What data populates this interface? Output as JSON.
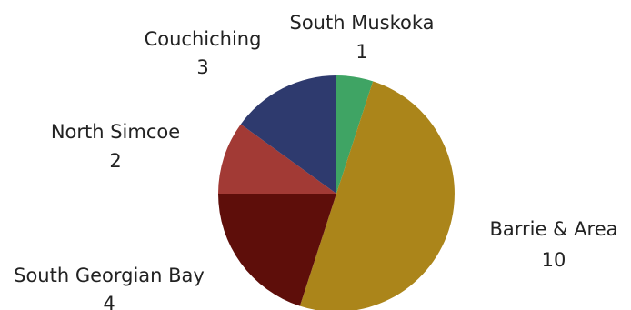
{
  "chart_data": {
    "type": "pie",
    "categories": [
      "South Muskoka",
      "Barrie & Area",
      "South Georgian Bay",
      "North Simcoe",
      "Couchiching"
    ],
    "values": [
      1,
      10,
      4,
      2,
      3
    ],
    "colors": [
      "#3fa464",
      "#ab851a",
      "#5e0e0a",
      "#a23a35",
      "#2e3a6e"
    ],
    "start_angle_deg": 0,
    "direction": "clockwise",
    "labels": [
      {
        "name": "South Muskoka",
        "value": "1"
      },
      {
        "name": "Barrie & Area",
        "value": "10"
      },
      {
        "name": "South Georgian Bay",
        "value": "4"
      },
      {
        "name": "North Simcoe",
        "value": "2"
      },
      {
        "name": "Couchiching",
        "value": "3"
      }
    ],
    "legend": "none",
    "title": ""
  }
}
